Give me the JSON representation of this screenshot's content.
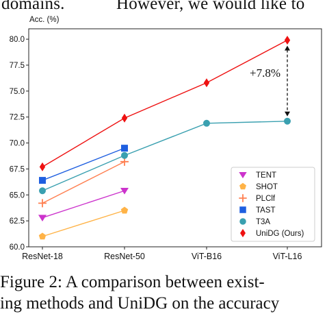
{
  "body_text": {
    "top_left": "domains.",
    "top_right": "However, we would like to"
  },
  "caption": {
    "line1": "Figure 2:  A comparison between exist-",
    "line2": "ing methods and UniDG on the accuracy"
  },
  "chart_data": {
    "type": "line",
    "title": "",
    "xlabel": "",
    "ylabel": "Acc. (%)",
    "categories": [
      "ResNet-18",
      "ResNet-50",
      "ViT-B16",
      "ViT-L16"
    ],
    "ylim": [
      60.0,
      81.0
    ],
    "yticks": [
      "60.0",
      "62.5",
      "65.0",
      "67.5",
      "70.0",
      "72.5",
      "75.0",
      "77.5",
      "80.0"
    ],
    "grid": false,
    "legend_position": "bottom-right",
    "series": [
      {
        "name": "TENT",
        "marker": "triangle-down",
        "color": "#cc33cc",
        "values": [
          62.8,
          65.4,
          null,
          null
        ]
      },
      {
        "name": "SHOT",
        "marker": "pentagon",
        "color": "#ffb347",
        "values": [
          61.0,
          63.5,
          null,
          null
        ]
      },
      {
        "name": "PLClf",
        "marker": "plus",
        "color": "#ff7f50",
        "values": [
          64.2,
          68.2,
          null,
          null
        ]
      },
      {
        "name": "TAST",
        "marker": "square",
        "color": "#1f5fe0",
        "values": [
          66.4,
          69.5,
          null,
          null
        ]
      },
      {
        "name": "T3A",
        "marker": "circle",
        "color": "#3aa0b0",
        "values": [
          65.4,
          68.8,
          71.9,
          72.1
        ]
      },
      {
        "name": "UniDG (Ours)",
        "marker": "thin-diamond",
        "color": "#ee1111",
        "values": [
          67.7,
          72.4,
          75.8,
          79.9
        ]
      }
    ],
    "annotations": [
      {
        "text": "+7.8%",
        "between": [
          "T3A",
          "UniDG (Ours)"
        ],
        "category": "ViT-L16",
        "style": "dashed double arrow"
      }
    ]
  }
}
